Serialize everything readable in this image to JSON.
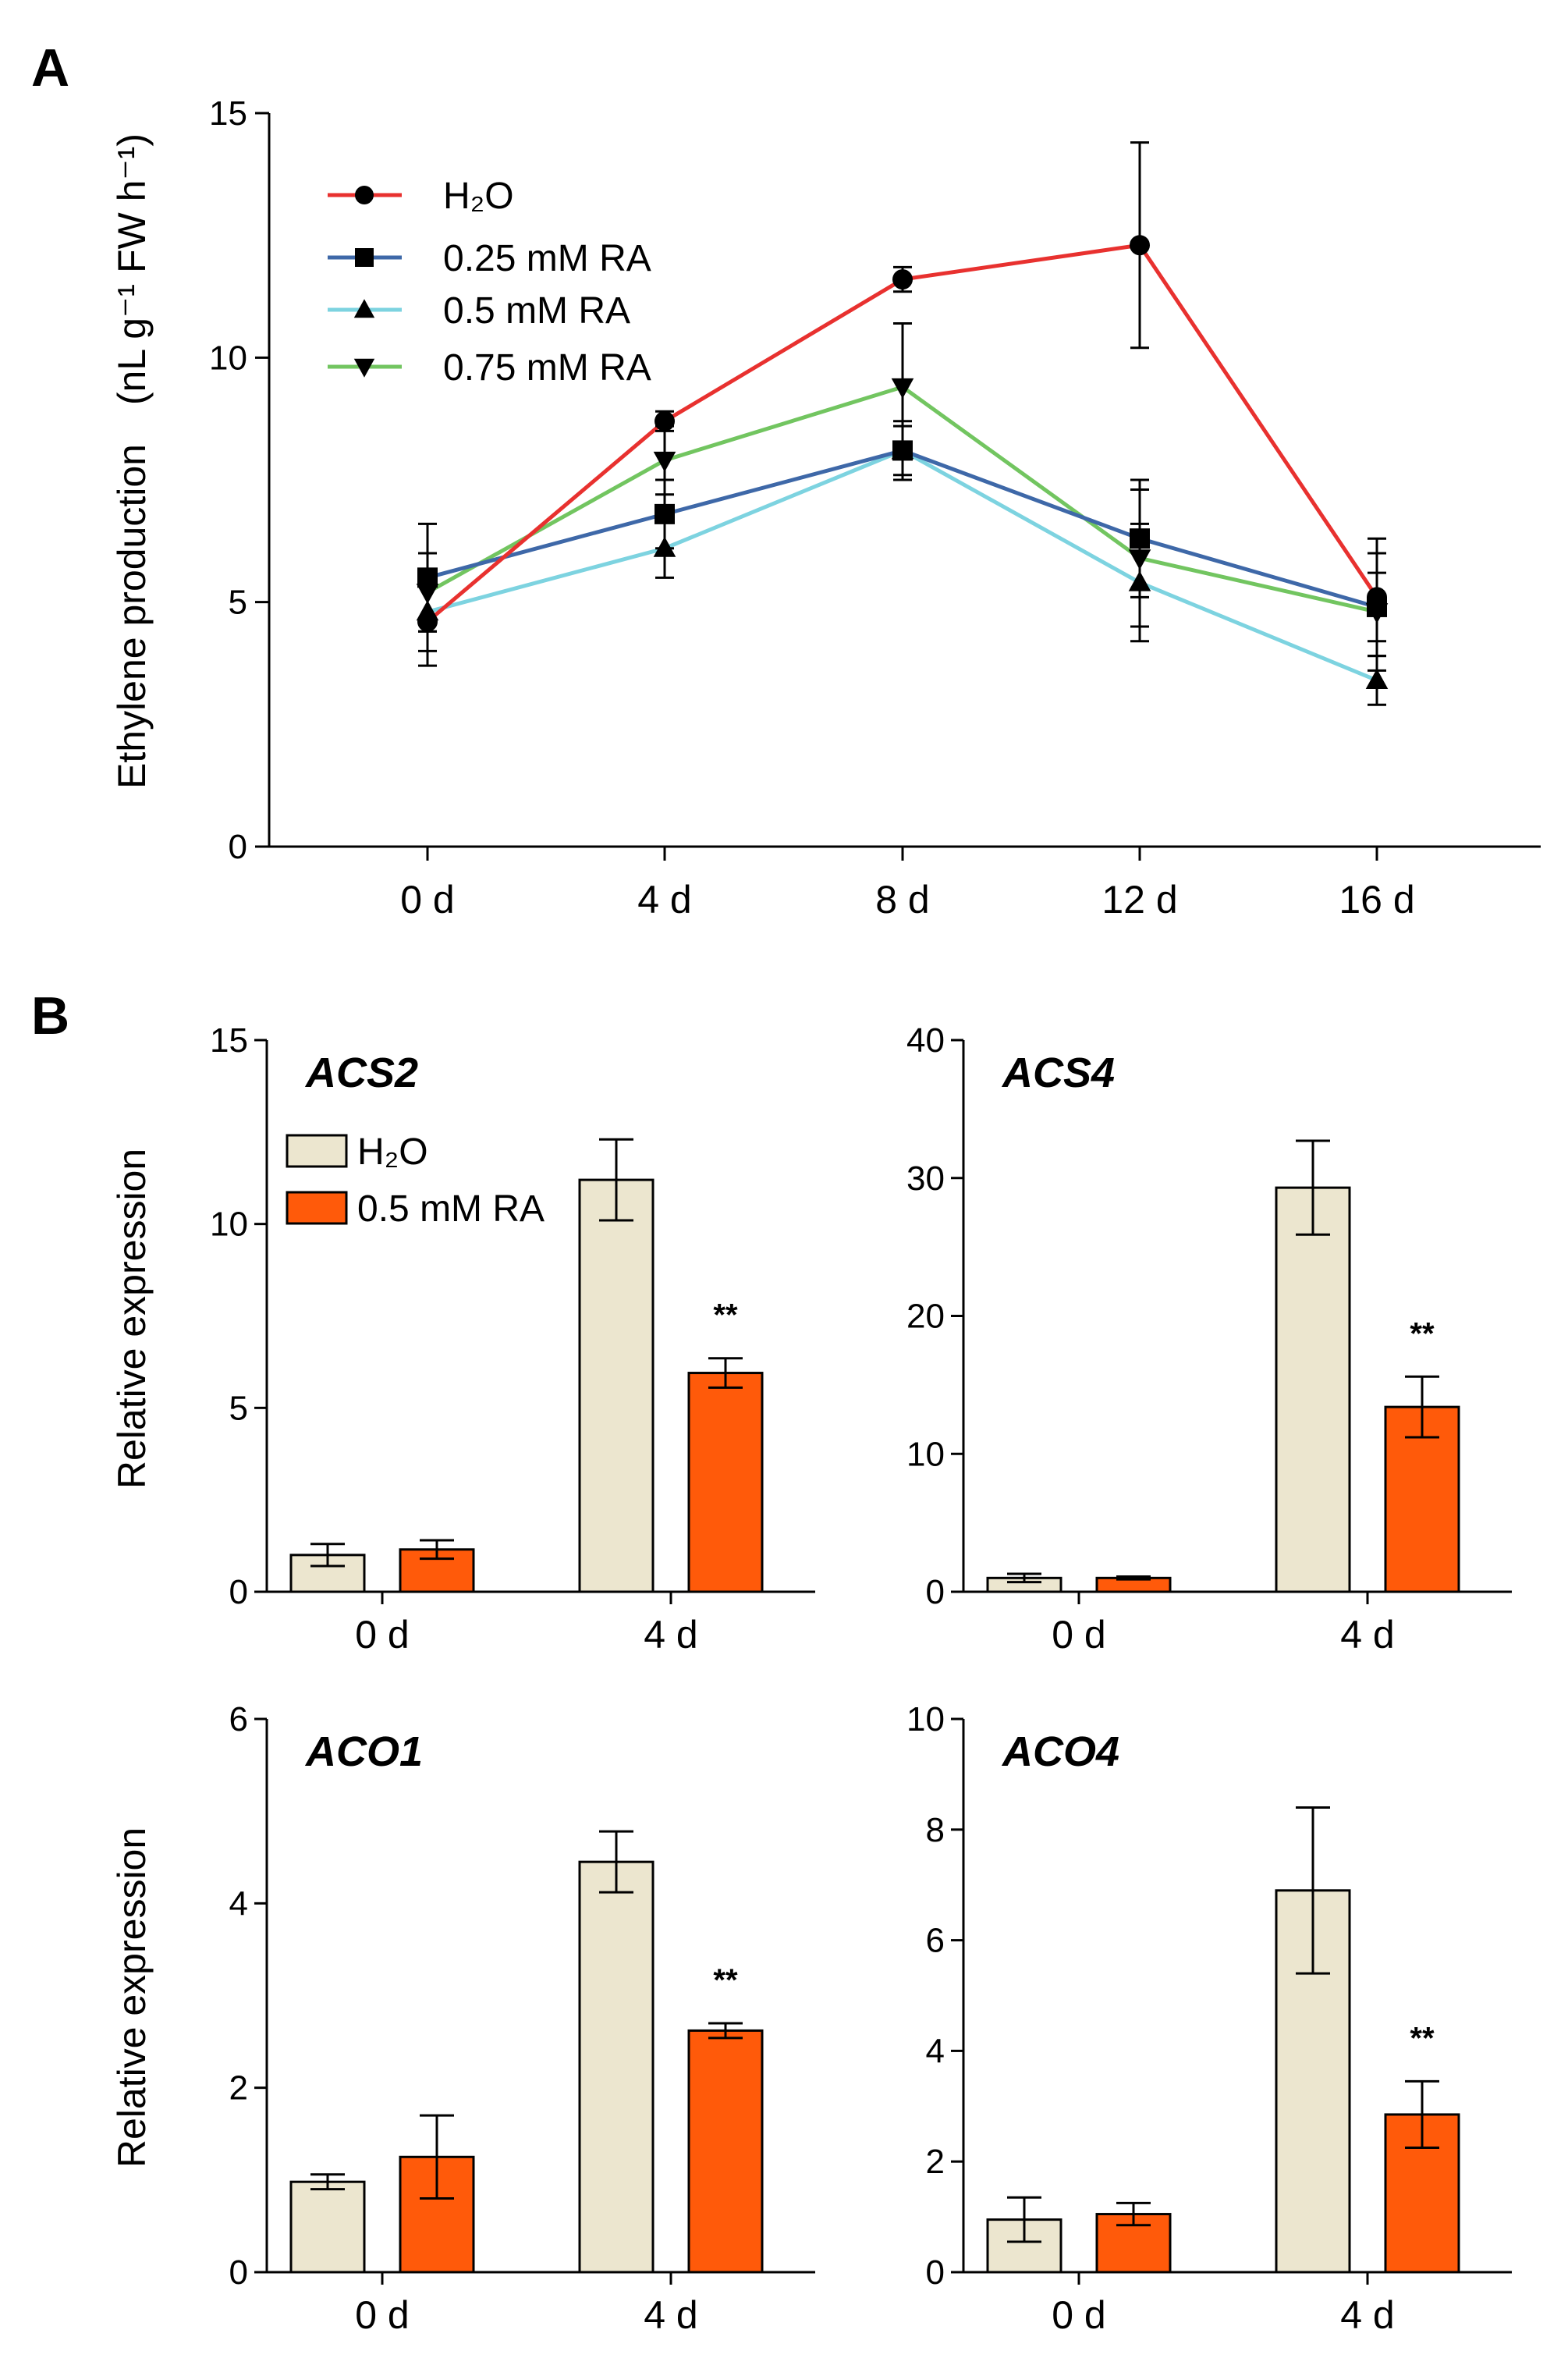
{
  "colors": {
    "h2o": "#e8312f",
    "ra025": "#3e68a8",
    "ra05": "#7dd3e0",
    "ra075": "#72c560",
    "bar_h2o": "#ece6cf",
    "bar_ra": "#ff5a0a"
  },
  "chart_data": [
    {
      "id": "A",
      "panel_label": "A",
      "type": "line",
      "ylabel_main": "Ethylene production",
      "ylabel_unit": "(nL g⁻¹ FW h⁻¹)",
      "categories": [
        "0 d",
        "4 d",
        "8 d",
        "12 d",
        "16 d"
      ],
      "ylim": [
        0,
        15
      ],
      "yticks": [
        0,
        5,
        10,
        15
      ],
      "series": [
        {
          "name": "H₂O",
          "marker": "circle",
          "color_key": "h2o",
          "values": [
            4.6,
            8.7,
            11.6,
            12.3,
            5.1
          ],
          "errors": [
            0.9,
            0.2,
            0.25,
            2.1,
            1.2
          ]
        },
        {
          "name": "0.25 mM RA",
          "marker": "square",
          "color_key": "ra025",
          "values": [
            5.5,
            6.8,
            8.1,
            6.3,
            4.9
          ],
          "errors": [
            1.1,
            0.7,
            0.6,
            1.2,
            0.7
          ]
        },
        {
          "name": "0.5 mM RA",
          "marker": "triangle-up",
          "color_key": "ra05",
          "values": [
            4.8,
            6.1,
            8.1,
            5.4,
            3.4
          ],
          "errors": [
            0.8,
            0.6,
            0.5,
            1.2,
            0.5
          ]
        },
        {
          "name": "0.75 mM RA",
          "marker": "triangle-down",
          "color_key": "ra075",
          "values": [
            5.2,
            7.9,
            9.4,
            5.9,
            4.8
          ],
          "errors": [
            0.8,
            0.7,
            1.3,
            1.4,
            1.2
          ]
        }
      ]
    },
    {
      "id": "ACS2",
      "panel_label": "B",
      "type": "bar",
      "gene": "ACS2",
      "ylabel": "Relative expression",
      "categories": [
        "0 d",
        "4 d"
      ],
      "ylim": [
        0,
        15
      ],
      "yticks": [
        0,
        5,
        10,
        15
      ],
      "legend": [
        "H₂O",
        "0.5 mM RA"
      ],
      "series": [
        {
          "name": "H₂O",
          "color_key": "bar_h2o",
          "values": [
            1.0,
            11.2
          ],
          "errors": [
            0.3,
            1.1
          ]
        },
        {
          "name": "0.5 mM RA",
          "color_key": "bar_ra",
          "values": [
            1.15,
            5.95
          ],
          "errors": [
            0.25,
            0.4
          ]
        }
      ],
      "significance": [
        "",
        "**"
      ]
    },
    {
      "id": "ACS4",
      "type": "bar",
      "gene": "ACS4",
      "categories": [
        "0 d",
        "4 d"
      ],
      "ylim": [
        0,
        40
      ],
      "yticks": [
        0,
        10,
        20,
        30,
        40
      ],
      "series": [
        {
          "name": "H₂O",
          "color_key": "bar_h2o",
          "values": [
            1.0,
            29.3
          ],
          "errors": [
            0.3,
            3.4
          ]
        },
        {
          "name": "0.5 mM RA",
          "color_key": "bar_ra",
          "values": [
            1.0,
            13.4
          ],
          "errors": [
            0.1,
            2.2
          ]
        }
      ],
      "significance": [
        "",
        "**"
      ]
    },
    {
      "id": "ACO1",
      "type": "bar",
      "gene": "ACO1",
      "ylabel": "Relative expression",
      "categories": [
        "0 d",
        "4 d"
      ],
      "ylim": [
        0,
        6
      ],
      "yticks": [
        0,
        2,
        4,
        6
      ],
      "series": [
        {
          "name": "H₂O",
          "color_key": "bar_h2o",
          "values": [
            0.98,
            4.45
          ],
          "errors": [
            0.08,
            0.33
          ]
        },
        {
          "name": "0.5 mM RA",
          "color_key": "bar_ra",
          "values": [
            1.25,
            2.62
          ],
          "errors": [
            0.45,
            0.08
          ]
        }
      ],
      "significance": [
        "",
        "**"
      ]
    },
    {
      "id": "ACO4",
      "type": "bar",
      "gene": "ACO4",
      "categories": [
        "0 d",
        "4 d"
      ],
      "ylim": [
        0,
        10
      ],
      "yticks": [
        0,
        2,
        4,
        6,
        8,
        10
      ],
      "series": [
        {
          "name": "H₂O",
          "color_key": "bar_h2o",
          "values": [
            0.95,
            6.9
          ],
          "errors": [
            0.4,
            1.5
          ]
        },
        {
          "name": "0.5 mM RA",
          "color_key": "bar_ra",
          "values": [
            1.05,
            2.85
          ],
          "errors": [
            0.2,
            0.6
          ]
        }
      ],
      "significance": [
        "",
        "**"
      ]
    }
  ]
}
